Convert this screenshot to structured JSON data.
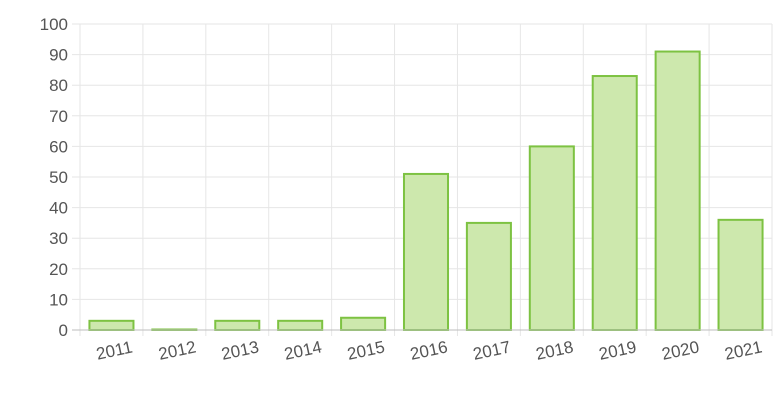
{
  "chart_data": {
    "type": "bar",
    "categories": [
      "2011",
      "2012",
      "2013",
      "2014",
      "2015",
      "2016",
      "2017",
      "2018",
      "2019",
      "2020",
      "2021"
    ],
    "values": [
      3,
      0,
      3,
      3,
      4,
      51,
      35,
      60,
      83,
      91,
      36
    ],
    "ylim": [
      0,
      100
    ],
    "yticks": [
      0,
      10,
      20,
      30,
      40,
      50,
      60,
      70,
      80,
      90,
      100
    ],
    "grid": true,
    "bar_fill": "#cde8ad",
    "bar_stroke": "#7dc242",
    "title": "",
    "xlabel": "",
    "ylabel": ""
  }
}
